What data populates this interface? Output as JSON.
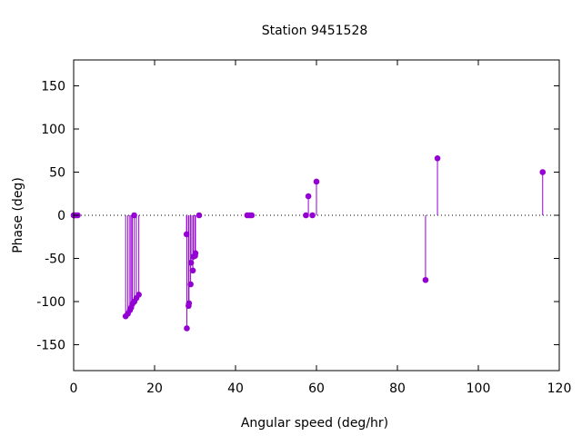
{
  "chart_data": {
    "type": "stem",
    "title": "Station 9451528",
    "xlabel": "Angular speed (deg/hr)",
    "ylabel": "Phase (deg)",
    "xlim": [
      0,
      120
    ],
    "ylim": [
      -180,
      180
    ],
    "xticks": [
      0,
      20,
      40,
      60,
      80,
      100,
      120
    ],
    "yticks": [
      -150,
      -100,
      -50,
      0,
      50,
      100,
      150
    ],
    "zero_line": "dotted",
    "grid": false,
    "legend": "none",
    "color": "#9400d3",
    "points": [
      {
        "x": 0.0,
        "y": 0
      },
      {
        "x": 0.04,
        "y": 0
      },
      {
        "x": 0.08,
        "y": 0
      },
      {
        "x": 0.5,
        "y": 0
      },
      {
        "x": 1.0,
        "y": 0
      },
      {
        "x": 12.85,
        "y": -117
      },
      {
        "x": 13.4,
        "y": -114
      },
      {
        "x": 13.9,
        "y": -110
      },
      {
        "x": 14.2,
        "y": -107
      },
      {
        "x": 14.5,
        "y": -103
      },
      {
        "x": 14.96,
        "y": 0
      },
      {
        "x": 15.0,
        "y": -100
      },
      {
        "x": 15.5,
        "y": -96
      },
      {
        "x": 16.1,
        "y": -92
      },
      {
        "x": 27.9,
        "y": -22
      },
      {
        "x": 27.97,
        "y": -131
      },
      {
        "x": 28.4,
        "y": -105
      },
      {
        "x": 28.5,
        "y": -102
      },
      {
        "x": 28.9,
        "y": -80
      },
      {
        "x": 29.0,
        "y": -55
      },
      {
        "x": 29.45,
        "y": -64
      },
      {
        "x": 29.6,
        "y": -48
      },
      {
        "x": 30.0,
        "y": -47
      },
      {
        "x": 30.1,
        "y": -44
      },
      {
        "x": 31.0,
        "y": 0
      },
      {
        "x": 42.9,
        "y": 0
      },
      {
        "x": 43.5,
        "y": 0
      },
      {
        "x": 44.0,
        "y": 0
      },
      {
        "x": 57.4,
        "y": 0
      },
      {
        "x": 58.0,
        "y": 22
      },
      {
        "x": 59.0,
        "y": 0
      },
      {
        "x": 60.0,
        "y": 39
      },
      {
        "x": 86.95,
        "y": -75
      },
      {
        "x": 89.9,
        "y": 66
      },
      {
        "x": 115.9,
        "y": 50
      }
    ]
  }
}
